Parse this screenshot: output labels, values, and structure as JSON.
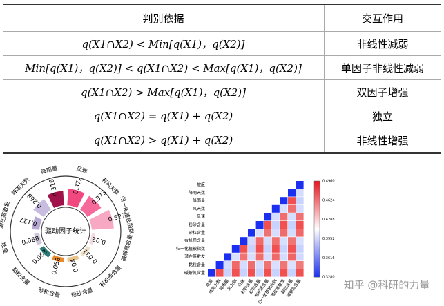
{
  "table": {
    "header": [
      "判别依据",
      "交互作用"
    ],
    "rows": [
      [
        "q(X1∩X2) < Min[q(X1)，q(X2)]",
        "非线性减弱"
      ],
      [
        "Min[q(X1)，q(X2)] <  q(X1∩X2) <  Max[q(X1)，q(X2)]",
        "单因子非线性减弱"
      ],
      [
        "q(X1∩X2) >  Max[q(X1)，q(X2)]",
        "双因子增强"
      ],
      [
        "q(X1∩X2) = q(X1) + q(X2)",
        "独立"
      ],
      [
        "q(X1∩X2) > q(X1) + q(X2)",
        "非线性增强"
      ]
    ]
  },
  "radial": {
    "center_label": "驱动因子统计",
    "categories": [
      "降雨量",
      "风速",
      "有风天数",
      "归一化植被指数",
      "碱解氮含量",
      "有机质含量",
      "粉砂含量",
      "砂粒含量",
      "黏粒含量",
      "坡度",
      "潜在蒸散发",
      "降雨天数"
    ],
    "values": [
      0.316,
      0.372,
      0.373,
      0.527,
      0.02,
      0.031,
      0.04,
      0.058,
      0.063,
      0.068,
      0.127,
      0.268
    ],
    "colors": [
      "#a0124a",
      "#f0487f",
      "#f56a9a",
      "#f7a8c3",
      "#f2d9e3",
      "#efe0c7",
      "#e8c38a",
      "#e88a2a",
      "#2a7c74",
      "#cfc6de",
      "#b7a9d4",
      "#c8bde0"
    ]
  },
  "heatmap": {
    "labels": [
      "坡度",
      "降雨天数",
      "降雨量",
      "风天数",
      "风速",
      "粉砂含量",
      "砂粒含量",
      "有机质含量",
      "归一化植被指数",
      "潜在蒸散发",
      "黏粒含量",
      "碱解氮含量"
    ],
    "colorbar_ticks": [
      "0.4960",
      "0.4624",
      "0.4288",
      "0.3952",
      "0.3616",
      "0.3280"
    ]
  },
  "watermark": "知乎 @科研的力量"
}
